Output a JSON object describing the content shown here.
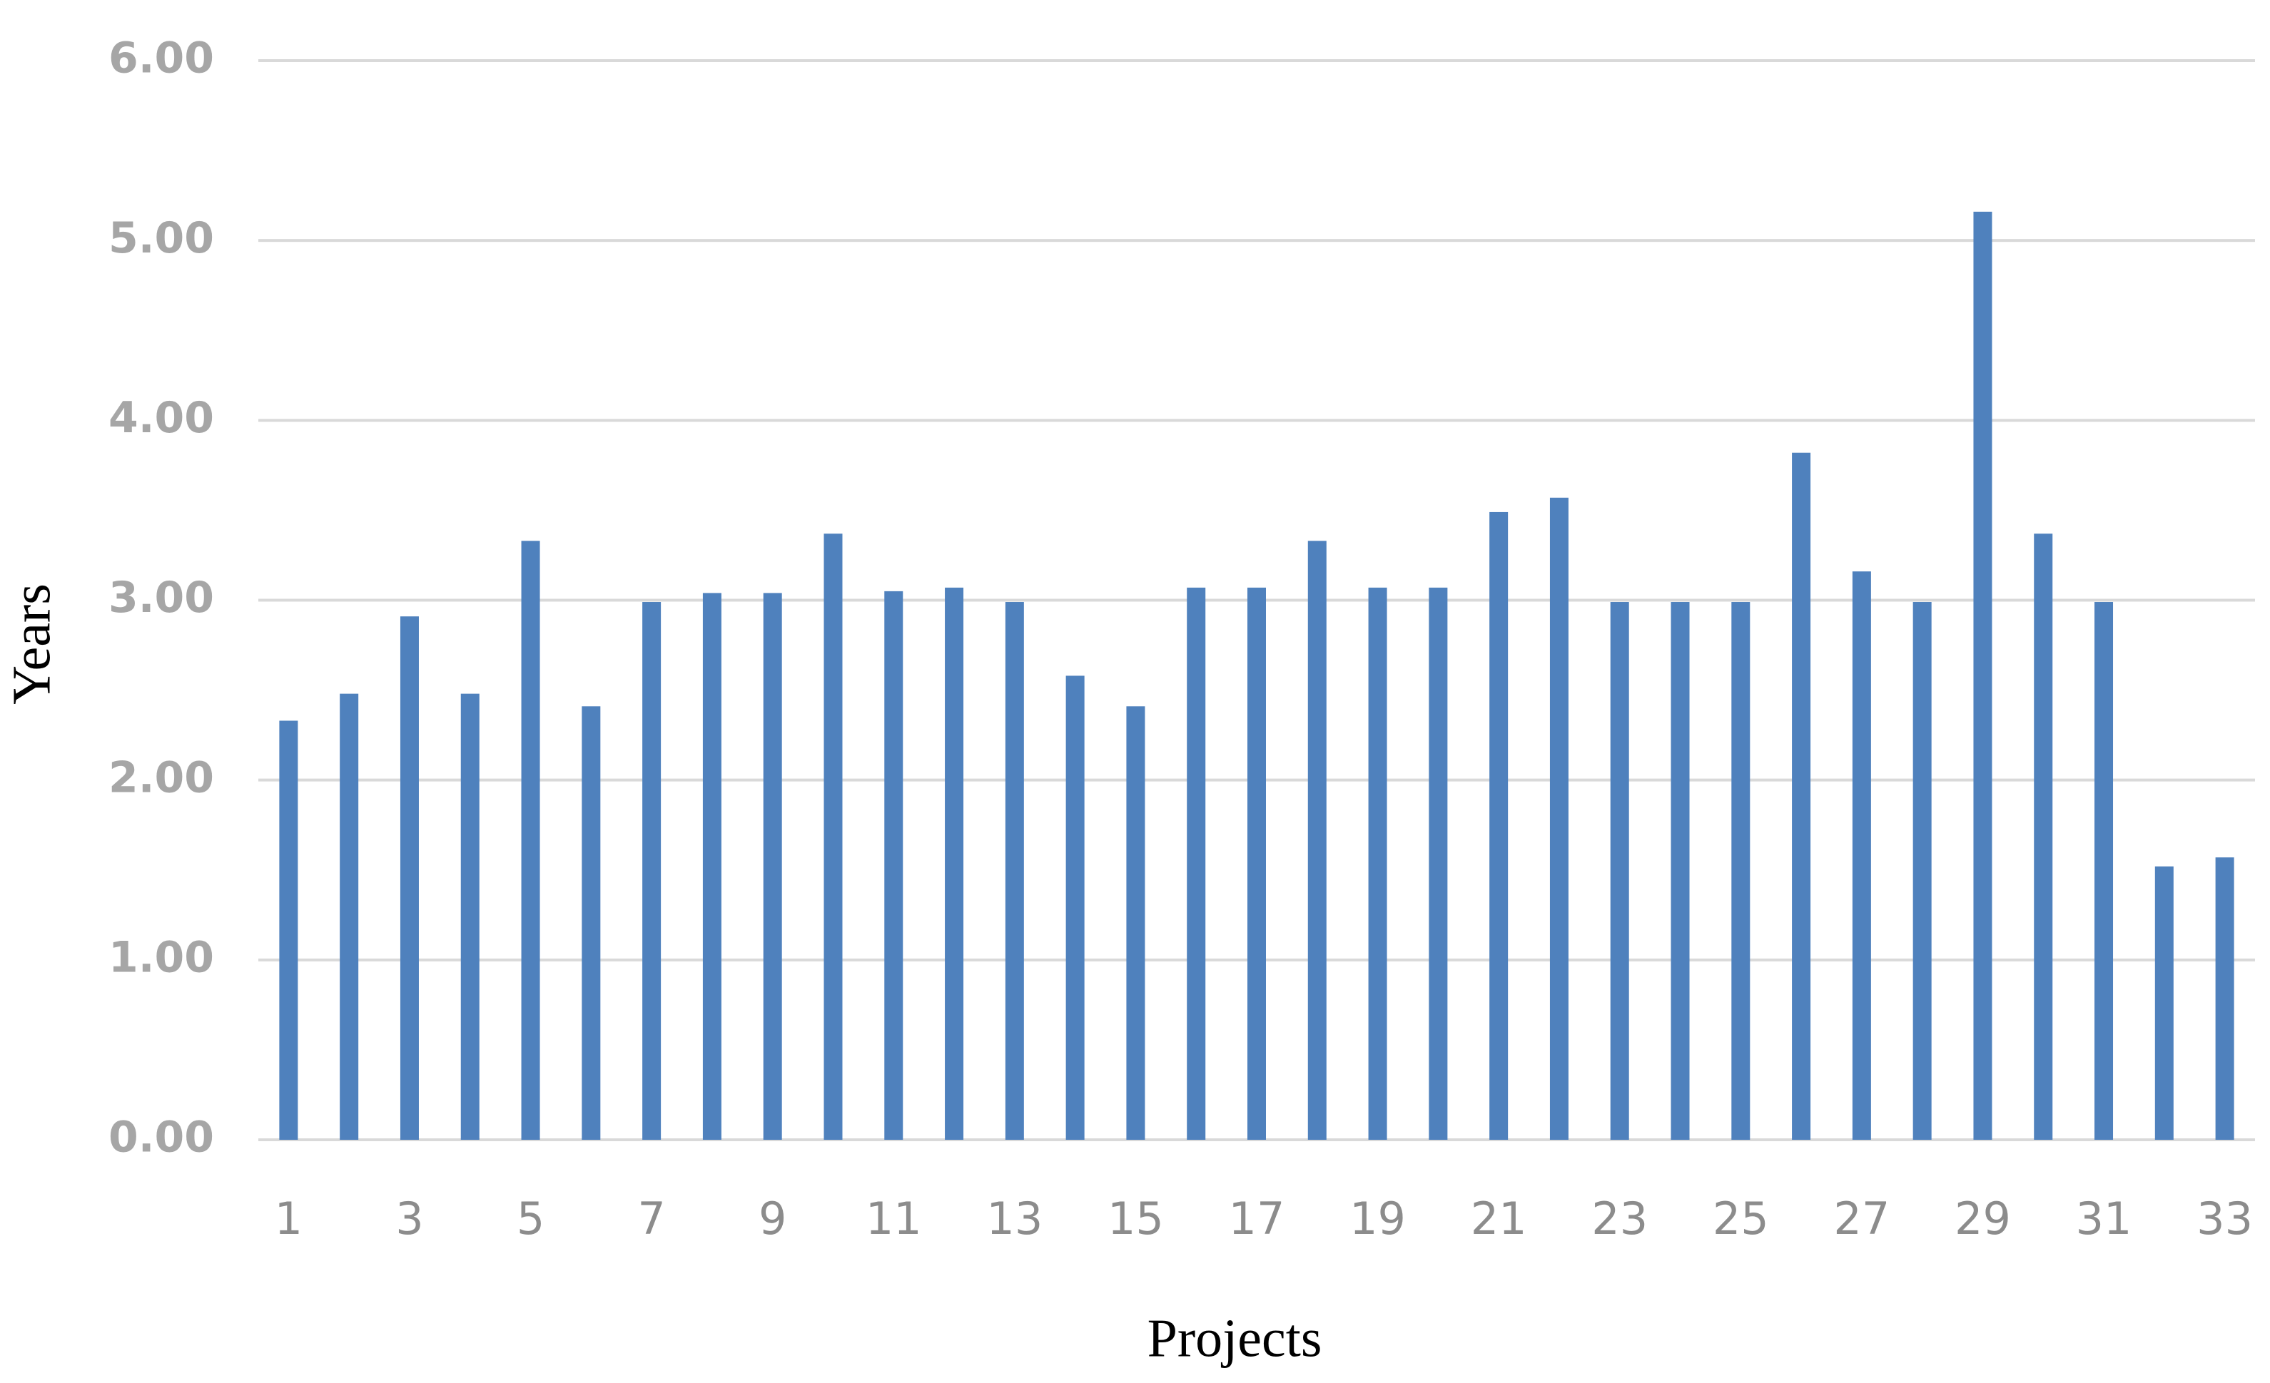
{
  "chart_data": {
    "type": "bar",
    "x_label": "Projects",
    "y_label": "Years",
    "categories": [
      "1",
      null,
      "3",
      null,
      "5",
      null,
      "7",
      null,
      "9",
      null,
      "11",
      null,
      "13",
      null,
      "15",
      null,
      "17",
      null,
      "19",
      null,
      "21",
      null,
      "23",
      null,
      "25",
      null,
      "27",
      null,
      "29",
      null,
      "31",
      null,
      "33"
    ],
    "values": [
      2.33,
      2.48,
      2.91,
      2.48,
      3.33,
      2.41,
      2.99,
      3.04,
      3.04,
      3.37,
      3.05,
      3.07,
      2.99,
      2.58,
      2.41,
      3.07,
      3.07,
      3.33,
      3.07,
      3.07,
      3.49,
      3.57,
      2.99,
      2.99,
      2.99,
      3.82,
      3.16,
      2.99,
      5.16,
      3.37,
      2.99,
      1.52,
      1.57
    ],
    "color": "#4f81bd",
    "ylim": [
      0,
      6
    ],
    "yticks": [
      {
        "value": 0,
        "label": "0.00"
      },
      {
        "value": 1,
        "label": "1.00"
      },
      {
        "value": 2,
        "label": "2.00"
      },
      {
        "value": 3,
        "label": "3.00"
      },
      {
        "value": 4,
        "label": "4.00"
      },
      {
        "value": 5,
        "label": "5.00"
      },
      {
        "value": 6,
        "label": "6.00"
      }
    ],
    "grid": true
  }
}
